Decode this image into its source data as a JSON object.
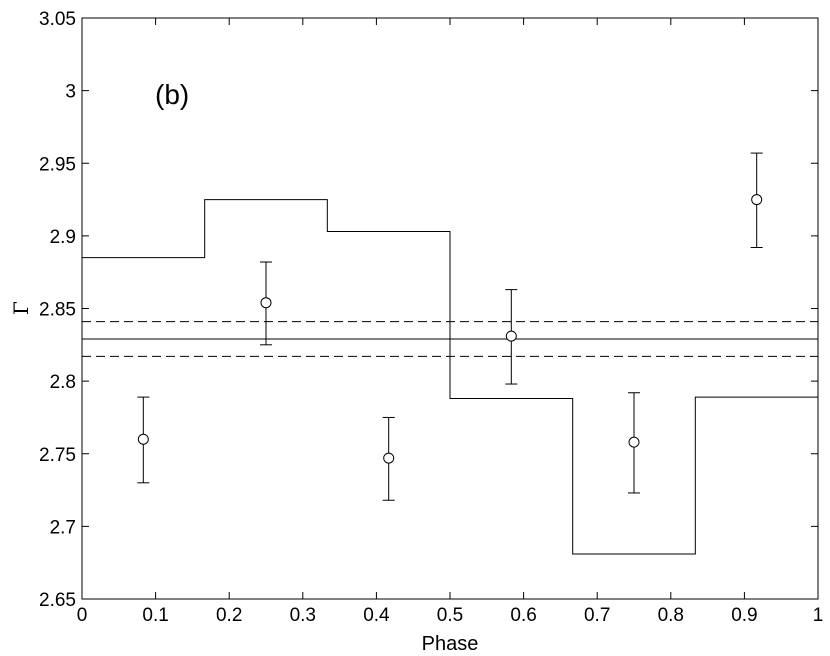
{
  "chart_data": {
    "type": "scatter",
    "title": "",
    "annotation": "(b)",
    "xlabel": "Phase",
    "ylabel": "Γ",
    "xlim": [
      0,
      1
    ],
    "ylim": [
      2.65,
      3.05
    ],
    "xticks": [
      0,
      0.1,
      0.2,
      0.3,
      0.4,
      0.5,
      0.6,
      0.7,
      0.8,
      0.9,
      1
    ],
    "xtick_labels": [
      "0",
      "0.1",
      "0.2",
      "0.3",
      "0.4",
      "0.5",
      "0.6",
      "0.7",
      "0.8",
      "0.9",
      "1"
    ],
    "yticks": [
      2.65,
      2.7,
      2.75,
      2.8,
      2.85,
      2.9,
      2.95,
      3,
      3.05
    ],
    "ytick_labels": [
      "2.65",
      "2.7",
      "2.75",
      "2.8",
      "2.85",
      "2.9",
      "2.95",
      "3",
      "3.05"
    ],
    "grid": false,
    "points": [
      {
        "x": 0.0833,
        "y": 2.76,
        "err_low": 2.73,
        "err_high": 2.789
      },
      {
        "x": 0.25,
        "y": 2.854,
        "err_low": 2.825,
        "err_high": 2.882
      },
      {
        "x": 0.4167,
        "y": 2.747,
        "err_low": 2.718,
        "err_high": 2.775
      },
      {
        "x": 0.5833,
        "y": 2.831,
        "err_low": 2.798,
        "err_high": 2.863
      },
      {
        "x": 0.75,
        "y": 2.758,
        "err_low": 2.723,
        "err_high": 2.792
      },
      {
        "x": 0.9167,
        "y": 2.925,
        "err_low": 2.892,
        "err_high": 2.957
      }
    ],
    "step": {
      "edges": [
        0,
        0.1667,
        0.3333,
        0.5,
        0.6667,
        0.8333,
        1
      ],
      "values": [
        2.885,
        2.925,
        2.903,
        2.788,
        2.681,
        2.789
      ]
    },
    "mean_line": 2.829,
    "dashed_lines": [
      2.841,
      2.817
    ]
  }
}
